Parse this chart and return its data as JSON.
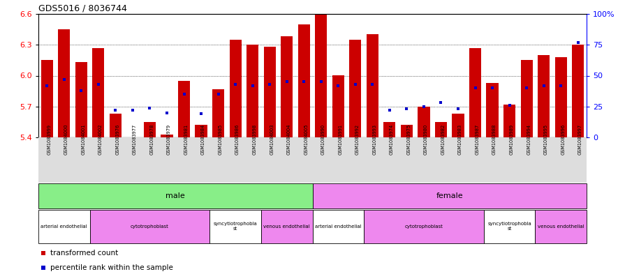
{
  "title": "GDS5016 / 8036744",
  "samples": [
    "GSM1083999",
    "GSM1084000",
    "GSM1084001",
    "GSM1084002",
    "GSM1083976",
    "GSM1083977",
    "GSM1083978",
    "GSM1083979",
    "GSM1083981",
    "GSM1083984",
    "GSM1083985",
    "GSM1083986",
    "GSM1083998",
    "GSM1084003",
    "GSM1084004",
    "GSM1084005",
    "GSM1083990",
    "GSM1083991",
    "GSM1083992",
    "GSM1083993",
    "GSM1083974",
    "GSM1083975",
    "GSM1083980",
    "GSM1083982",
    "GSM1083983",
    "GSM1083987",
    "GSM1083988",
    "GSM1083989",
    "GSM1083994",
    "GSM1083995",
    "GSM1083996",
    "GSM1083997"
  ],
  "transformed_count": [
    6.15,
    6.45,
    6.13,
    6.27,
    5.63,
    5.4,
    5.55,
    5.43,
    5.95,
    5.52,
    5.87,
    6.35,
    6.3,
    6.28,
    6.38,
    6.5,
    6.68,
    6.0,
    6.35,
    6.4,
    5.55,
    5.52,
    5.7,
    5.55,
    5.63,
    6.27,
    5.93,
    5.72,
    6.15,
    6.2,
    6.18,
    6.3
  ],
  "percentile_rank": [
    42,
    47,
    38,
    43,
    22,
    22,
    24,
    20,
    35,
    19,
    35,
    43,
    42,
    43,
    45,
    45,
    45,
    42,
    43,
    43,
    22,
    23,
    25,
    28,
    23,
    40,
    40,
    26,
    40,
    42,
    42,
    77
  ],
  "ymin": 5.4,
  "ymax": 6.6,
  "yticks": [
    5.4,
    5.7,
    6.0,
    6.3,
    6.6
  ],
  "right_yticks": [
    0,
    25,
    50,
    75,
    100
  ],
  "right_ytick_labels": [
    "0",
    "25",
    "50",
    "75",
    "100%"
  ],
  "bar_color": "#cc0000",
  "dot_color": "#0000cc",
  "gender_groups": [
    {
      "label": "male",
      "start": 0,
      "end": 16,
      "color": "#88ee88"
    },
    {
      "label": "female",
      "start": 16,
      "end": 32,
      "color": "#ee88ee"
    }
  ],
  "cell_type_groups": [
    {
      "label": "arterial endothelial",
      "start": 0,
      "end": 3,
      "color": "#ffffff"
    },
    {
      "label": "cytotrophoblast",
      "start": 3,
      "end": 10,
      "color": "#ee88ee"
    },
    {
      "label": "syncytiotrophoblast",
      "start": 10,
      "end": 13,
      "color": "#ffffff"
    },
    {
      "label": "venous endothelial",
      "start": 13,
      "end": 16,
      "color": "#ee88ee"
    },
    {
      "label": "arterial endothelial",
      "start": 16,
      "end": 19,
      "color": "#ffffff"
    },
    {
      "label": "cytotrophoblast",
      "start": 19,
      "end": 26,
      "color": "#ee88ee"
    },
    {
      "label": "syncytiotrophoblast",
      "start": 26,
      "end": 29,
      "color": "#ffffff"
    },
    {
      "label": "venous endothelial",
      "start": 29,
      "end": 32,
      "color": "#ee88ee"
    }
  ],
  "legend_items": [
    {
      "label": "transformed count",
      "color": "#cc0000"
    },
    {
      "label": "percentile rank within the sample",
      "color": "#0000cc"
    }
  ],
  "xtick_bg": "#dddddd",
  "fig_width": 8.85,
  "fig_height": 3.93
}
